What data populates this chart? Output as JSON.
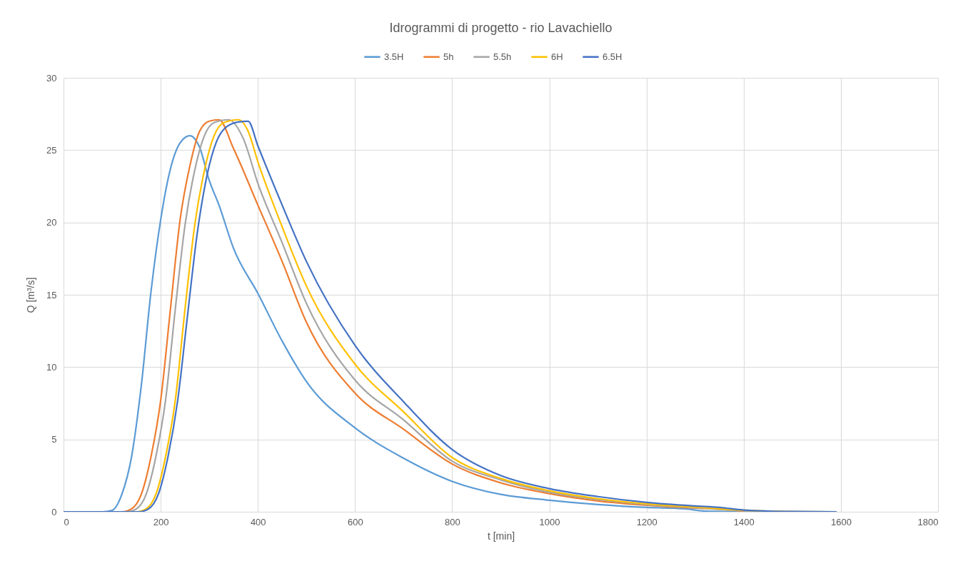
{
  "chart_data": {
    "type": "line",
    "title": "Idrogrammi di progetto - rio Lavachiello",
    "xlabel": "t [min]",
    "ylabel": "Q [m³/s]",
    "xlim": [
      0,
      1800
    ],
    "xticks": [
      0,
      200,
      400,
      600,
      800,
      1000,
      1200,
      1400,
      1600,
      1800
    ],
    "ylim": [
      0,
      30
    ],
    "yticks": [
      0,
      5,
      10,
      15,
      20,
      25,
      30
    ],
    "grid": true,
    "legend": "top",
    "series": [
      {
        "name": "3.5H",
        "color": "#5b9bd5",
        "x": [
          0,
          80,
          100,
          120,
          140,
          160,
          180,
          200,
          220,
          240,
          260,
          280,
          300,
          320,
          350,
          400,
          450,
          500,
          600,
          700,
          800,
          900,
          1000,
          1100,
          1200,
          1280,
          1320,
          1400,
          1500,
          1590
        ],
        "values": [
          0,
          0,
          0.1,
          1.2,
          3.8,
          8.7,
          15.2,
          20.2,
          23.7,
          25.5,
          26,
          25.2,
          22.9,
          21.2,
          18.2,
          15.1,
          11.8,
          9,
          5.8,
          3.7,
          2.1,
          1.2,
          0.8,
          0.5,
          0.3,
          0.2,
          0.05,
          0.01,
          0,
          0
        ]
      },
      {
        "name": "5h",
        "color": "#ed7d31",
        "x": [
          0,
          120,
          140,
          160,
          180,
          200,
          220,
          240,
          260,
          280,
          300,
          320,
          350,
          400,
          450,
          500,
          600,
          700,
          800,
          900,
          1000,
          1100,
          1200,
          1300,
          1350,
          1400
        ],
        "values": [
          0,
          0,
          0.2,
          1.2,
          3.8,
          7.7,
          14,
          20.2,
          23.9,
          26.3,
          27,
          27.1,
          25.1,
          21.2,
          17.3,
          13.1,
          8.2,
          5.7,
          3.3,
          2,
          1.25,
          0.75,
          0.45,
          0.25,
          0.18,
          0.05
        ]
      },
      {
        "name": "5.5h",
        "color": "#a5a5a5",
        "x": [
          0,
          130,
          150,
          170,
          190,
          210,
          230,
          250,
          270,
          290,
          310,
          340,
          370,
          400,
          450,
          500,
          600,
          700,
          800,
          900,
          1000,
          1100,
          1200,
          1300,
          1400,
          1500,
          1590
        ],
        "values": [
          0,
          0,
          0.2,
          1.2,
          3.8,
          7.7,
          14,
          19.8,
          23.6,
          26,
          26.9,
          27.1,
          25.8,
          22.7,
          18.6,
          14.4,
          9.1,
          6.35,
          3.5,
          2.2,
          1.35,
          0.85,
          0.5,
          0.28,
          0.08,
          0.01,
          0
        ]
      },
      {
        "name": "6H",
        "color": "#ffc000",
        "x": [
          0,
          150,
          170,
          190,
          210,
          230,
          250,
          270,
          290,
          310,
          330,
          360,
          380,
          400,
          450,
          500,
          600,
          700,
          800,
          900,
          1000,
          1100,
          1200,
          1300,
          1400,
          1500,
          1590
        ],
        "values": [
          0,
          0,
          0.2,
          1.2,
          3.8,
          7.7,
          14,
          19.8,
          23.6,
          26,
          26.9,
          27.1,
          26.3,
          24.2,
          19.7,
          15.6,
          10.2,
          6.9,
          3.75,
          2.3,
          1.45,
          0.9,
          0.55,
          0.32,
          0.1,
          0.01,
          0
        ]
      },
      {
        "name": "6.5H",
        "color": "#4472c4",
        "x": [
          0,
          155,
          175,
          195,
          215,
          235,
          255,
          275,
          295,
          315,
          335,
          360,
          380,
          400,
          450,
          500,
          600,
          700,
          800,
          900,
          1000,
          1100,
          1200,
          1300,
          1350,
          1400,
          1450,
          1500,
          1590
        ],
        "values": [
          0,
          0,
          0.2,
          1.2,
          3.8,
          7.7,
          13.5,
          19.2,
          23.2,
          25.6,
          26.6,
          26.95,
          27,
          25.3,
          21.2,
          17.3,
          11.5,
          7.6,
          4.3,
          2.5,
          1.6,
          1.05,
          0.65,
          0.4,
          0.3,
          0.12,
          0.05,
          0.02,
          0
        ]
      }
    ]
  }
}
